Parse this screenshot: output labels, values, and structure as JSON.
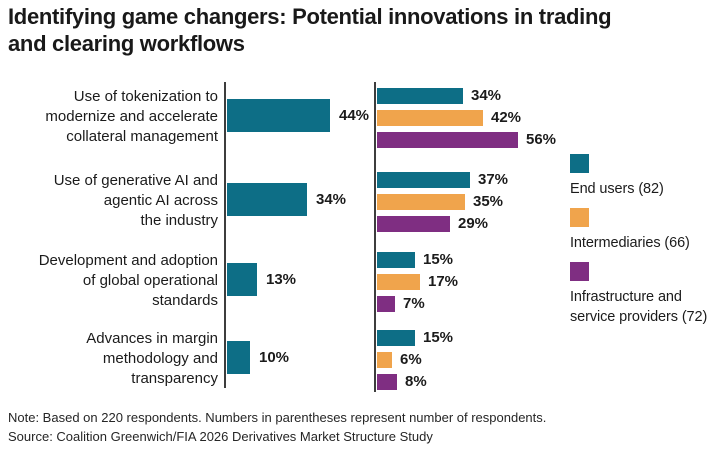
{
  "title": "Identifying game changers: Potential innovations in trading\nand clearing workflows",
  "chart_data": {
    "type": "bar",
    "orientation": "horizontal",
    "title": "Identifying game changers: Potential innovations in trading and clearing workflows",
    "value_suffix": "%",
    "grid": false,
    "legend_position": "right",
    "categories": [
      "Use of tokenization to\nmodernize and accelerate\ncollateral management",
      "Use of generative AI and\nagentic AI across\nthe industry",
      "Development and adoption\nof global operational\nstandards",
      "Advances in margin\nmethodology and\ntransparency"
    ],
    "overall": {
      "color": "#0d6e86",
      "values": [
        44,
        34,
        13,
        10
      ]
    },
    "series": [
      {
        "name": "End users (82)",
        "color": "#0d6e86",
        "values": [
          34,
          37,
          15,
          15
        ]
      },
      {
        "name": "Intermediaries (66)",
        "color": "#f0a44c",
        "values": [
          42,
          35,
          17,
          6
        ]
      },
      {
        "name": "Infrastructure and\nservice providers (72)",
        "color": "#7f2e82",
        "values": [
          56,
          29,
          7,
          8
        ]
      }
    ]
  },
  "footer": {
    "note": "Note: Based on 220 respondents. Numbers in parentheses represent number of respondents.",
    "source": "Source: Coalition Greenwich/FIA 2026 Derivatives Market Structure Study"
  }
}
